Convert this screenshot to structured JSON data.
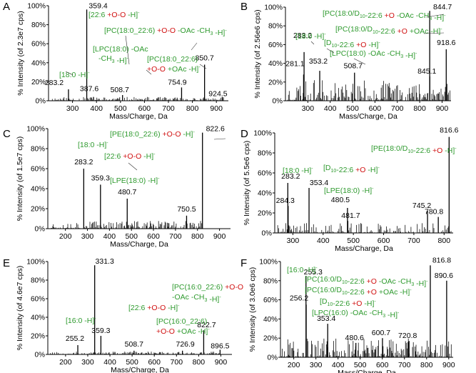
{
  "figure": {
    "title": "Mass spectra panels A-F"
  },
  "colors": {
    "green": "#2e9a2e",
    "red": "#d01010",
    "black": "#000000",
    "axis": "#000000"
  },
  "chart_data": [
    {
      "panel": "A",
      "type": "bar",
      "title": "",
      "xlabel": "Mass/Charge, Da",
      "ylabel": "% Intensity (of 2.3e7 cps)",
      "xlim": [
        200,
        950
      ],
      "ylim": [
        0,
        100
      ],
      "xticks": [
        300,
        400,
        500,
        600,
        700,
        800,
        900
      ],
      "yticks": [
        0,
        20,
        40,
        60,
        80,
        100
      ],
      "ytick_suffix": "%",
      "peaks": [
        {
          "x": 283.2,
          "y": 12,
          "label": "283.2"
        },
        {
          "x": 359.4,
          "y": 96,
          "label": "359.4"
        },
        {
          "x": 387.6,
          "y": 4,
          "label": "387.6"
        },
        {
          "x": 508.7,
          "y": 6,
          "label": "508.7"
        },
        {
          "x": 754.9,
          "y": 14,
          "label": "754.9"
        },
        {
          "x": 850.7,
          "y": 38,
          "label": "850.7"
        },
        {
          "x": 924.5,
          "y": 4,
          "label": "924.5"
        }
      ],
      "noise_seed": 11,
      "noise_range": [
        210,
        930
      ],
      "noise_max": 4,
      "annotations": [
        {
          "id": "a1",
          "segments": [
            [
              "[18:0 -H]",
              "green"
            ],
            [
              "-",
              "green",
              "sup"
            ]
          ]
        },
        {
          "id": "a2",
          "segments": [
            [
              "[22:6 ",
              "green"
            ],
            [
              "+O-O",
              "red"
            ],
            [
              " -H]",
              "green"
            ],
            [
              "-",
              "green",
              "sup"
            ]
          ]
        },
        {
          "id": "a3",
          "segments": [
            [
              "[PC(18:0_22:6) ",
              "green"
            ],
            [
              "+O-O",
              "red"
            ],
            [
              " -OAc -CH",
              "green"
            ],
            [
              "3",
              "green",
              "sub"
            ],
            [
              " -H]",
              "green"
            ],
            [
              "-",
              "green",
              "sup"
            ]
          ]
        },
        {
          "id": "a4",
          "segments": [
            [
              "[LPC(18:0) -OAc",
              "green"
            ]
          ]
        },
        {
          "id": "a5",
          "segments": [
            [
              "-CH",
              "green"
            ],
            [
              "3",
              "green",
              "sub"
            ],
            [
              " -H]",
              "green"
            ],
            [
              "-",
              "green",
              "sup"
            ]
          ]
        },
        {
          "id": "a6",
          "segments": [
            [
              "[PC(18:0_22:6)",
              "green"
            ]
          ]
        },
        {
          "id": "a7",
          "segments": [
            [
              "+O-O",
              "red"
            ],
            [
              " +OAc -H]",
              "green"
            ],
            [
              "-",
              "green",
              "sup"
            ]
          ]
        }
      ]
    },
    {
      "panel": "B",
      "type": "bar",
      "title": "",
      "xlabel": "Mass/Charge, Da",
      "ylabel": "% Intensity (of 2.56e6 cps)",
      "xlim": [
        200,
        940
      ],
      "ylim": [
        0,
        100
      ],
      "xticks": [
        300,
        400,
        500,
        600,
        700,
        800,
        900
      ],
      "yticks": [
        0,
        20,
        40,
        60,
        80,
        100
      ],
      "ytick_suffix": "%",
      "peaks": [
        {
          "x": 281.1,
          "y": 28,
          "label": "281.1"
        },
        {
          "x": 283.2,
          "y": 52,
          "label": "283.2"
        },
        {
          "x": 353.2,
          "y": 32,
          "label": "353.2"
        },
        {
          "x": 508.7,
          "y": 30,
          "label": "508.7"
        },
        {
          "x": 844.7,
          "y": 96,
          "label": "844.7"
        },
        {
          "x": 845.1,
          "y": 26,
          "label": "845.1"
        },
        {
          "x": 918.6,
          "y": 55,
          "label": "918.6"
        }
      ],
      "noise_seed": 23,
      "noise_range": [
        210,
        935
      ],
      "noise_max": 22,
      "annotations": [
        {
          "id": "b1",
          "segments": [
            [
              "[PC(18:0/D",
              "green"
            ],
            [
              "10",
              "green",
              "sub"
            ],
            [
              "-22:6 ",
              "green"
            ],
            [
              "+O",
              "red"
            ],
            [
              " -OAc -CH",
              "green"
            ],
            [
              "3",
              "green",
              "sub"
            ],
            [
              " -H]",
              "green"
            ],
            [
              "-",
              "green",
              "sup"
            ]
          ]
        },
        {
          "id": "b2",
          "segments": [
            [
              "[PC(18:0/D",
              "green"
            ],
            [
              "10",
              "green",
              "sub"
            ],
            [
              "-22:6 ",
              "green"
            ],
            [
              "+O",
              "red"
            ],
            [
              " +OAc -H]",
              "green"
            ],
            [
              "-",
              "green",
              "sup"
            ]
          ]
        },
        {
          "id": "b3",
          "segments": [
            [
              "[18:0 -H]",
              "green"
            ],
            [
              "-",
              "green",
              "sup"
            ]
          ]
        },
        {
          "id": "b4",
          "segments": [
            [
              "[D",
              "green"
            ],
            [
              "10",
              "green",
              "sub"
            ],
            [
              "-22:6 ",
              "green"
            ],
            [
              "+O",
              "red"
            ],
            [
              " -H]",
              "green"
            ],
            [
              "-",
              "green",
              "sup"
            ]
          ]
        },
        {
          "id": "b5",
          "segments": [
            [
              "[LPC(18:0) -OAc -CH",
              "green"
            ],
            [
              "3",
              "green",
              "sub"
            ],
            [
              " -H]",
              "green"
            ],
            [
              "-",
              "green",
              "sup"
            ]
          ]
        }
      ]
    },
    {
      "panel": "C",
      "type": "bar",
      "title": "",
      "xlabel": "Mass/Charge, Da",
      "ylabel": "% Intensity (of 1.5e7 cps)",
      "xlim": [
        120,
        950
      ],
      "ylim": [
        0,
        100
      ],
      "xticks": [
        200,
        300,
        400,
        500,
        600,
        700,
        800,
        900
      ],
      "yticks": [
        0,
        20,
        40,
        60,
        80,
        100
      ],
      "ytick_suffix": "%",
      "peaks": [
        {
          "x": 283.2,
          "y": 60,
          "label": "283.2"
        },
        {
          "x": 359.3,
          "y": 44,
          "label": "359.3"
        },
        {
          "x": 480.7,
          "y": 30,
          "label": "480.7"
        },
        {
          "x": 750.5,
          "y": 13,
          "label": "750.5"
        },
        {
          "x": 822.6,
          "y": 96,
          "label": "822.6"
        }
      ],
      "noise_seed": 37,
      "noise_range": [
        125,
        830
      ],
      "noise_max": 8,
      "annotations": [
        {
          "id": "c1",
          "segments": [
            [
              "[PE(18:0_22:6) ",
              "green"
            ],
            [
              "+O-O",
              "red"
            ],
            [
              " -H]",
              "green"
            ],
            [
              "-",
              "green",
              "sup"
            ]
          ]
        },
        {
          "id": "c2",
          "segments": [
            [
              "[18:0 -H]",
              "green"
            ],
            [
              "-",
              "green",
              "sup"
            ]
          ]
        },
        {
          "id": "c3",
          "segments": [
            [
              "[22:6 ",
              "green"
            ],
            [
              "+O-O",
              "red"
            ],
            [
              " -H]",
              "green"
            ],
            [
              "-",
              "green",
              "sup"
            ]
          ]
        },
        {
          "id": "c4",
          "segments": [
            [
              "[LPE(18:0) -H]",
              "green"
            ],
            [
              "-",
              "green",
              "sup"
            ]
          ]
        }
      ]
    },
    {
      "panel": "D",
      "type": "bar",
      "title": "",
      "xlabel": "Mass/Charge, Da",
      "ylabel": "% Intensity (of 5.5e6 cps)",
      "xlim": [
        240,
        830
      ],
      "ylim": [
        0,
        100
      ],
      "xticks": [
        300,
        400,
        500,
        600,
        700,
        800
      ],
      "yticks": [
        0,
        20,
        40,
        60,
        80,
        100
      ],
      "ytick_suffix": "%",
      "peaks": [
        {
          "x": 283.2,
          "y": 50,
          "label": "283.2"
        },
        {
          "x": 284.3,
          "y": 27,
          "label": "284.3"
        },
        {
          "x": 353.4,
          "y": 45,
          "label": "353.4"
        },
        {
          "x": 480.5,
          "y": 25,
          "label": "480.5"
        },
        {
          "x": 481.7,
          "y": 12,
          "label": "481.7"
        },
        {
          "x": 745.2,
          "y": 22,
          "label": "745.2"
        },
        {
          "x": 780.8,
          "y": 16,
          "label": "780.8"
        },
        {
          "x": 816.6,
          "y": 96,
          "label": "816.6"
        }
      ],
      "noise_seed": 41,
      "noise_range": [
        245,
        825
      ],
      "noise_max": 10,
      "annotations": [
        {
          "id": "d1",
          "segments": [
            [
              "[PE(18:0/D",
              "green"
            ],
            [
              "10",
              "green",
              "sub"
            ],
            [
              "-22:6 ",
              "green"
            ],
            [
              "+O",
              "red"
            ],
            [
              " -H]",
              "green"
            ],
            [
              "-",
              "green",
              "sup"
            ]
          ]
        },
        {
          "id": "d2",
          "segments": [
            [
              "[18:0 -H]",
              "green"
            ],
            [
              "-",
              "green",
              "sup"
            ]
          ]
        },
        {
          "id": "d3",
          "segments": [
            [
              "[D",
              "green"
            ],
            [
              "10",
              "green",
              "sub"
            ],
            [
              "-22:6 ",
              "green"
            ],
            [
              "+O",
              "red"
            ],
            [
              " -H]",
              "green"
            ],
            [
              "-",
              "green",
              "sup"
            ]
          ]
        },
        {
          "id": "d4",
          "segments": [
            [
              "[LPE(18:0) -H]",
              "green"
            ],
            [
              "-",
              "green",
              "sup"
            ]
          ]
        }
      ]
    },
    {
      "panel": "E",
      "type": "bar",
      "title": "",
      "xlabel": "Mass/Charge, Da",
      "ylabel": "% Intensity (of 4.6e7 cps)",
      "xlim": [
        120,
        950
      ],
      "ylim": [
        0,
        100
      ],
      "xticks": [
        200,
        300,
        400,
        500,
        600,
        700,
        800,
        900
      ],
      "yticks": [
        0,
        20,
        40,
        60,
        80,
        100
      ],
      "ytick_suffix": "%",
      "peaks": [
        {
          "x": 255.2,
          "y": 10,
          "label": "255.2"
        },
        {
          "x": 331.3,
          "y": 96,
          "label": "331.3"
        },
        {
          "x": 359.3,
          "y": 20,
          "label": "359.3"
        },
        {
          "x": 508.7,
          "y": 4,
          "label": "508.7"
        },
        {
          "x": 726.9,
          "y": 4,
          "label": "726.9"
        },
        {
          "x": 822.7,
          "y": 26,
          "label": "822.7"
        },
        {
          "x": 896.5,
          "y": 5,
          "label": "896.5"
        }
      ],
      "noise_seed": 53,
      "noise_range": [
        125,
        900
      ],
      "noise_max": 3,
      "annotations": [
        {
          "id": "e1",
          "segments": [
            [
              "[PC(16:0_22:6) ",
              "green"
            ],
            [
              "+O-O",
              "red"
            ]
          ]
        },
        {
          "id": "e2",
          "segments": [
            [
              "-OAc -CH",
              "green"
            ],
            [
              "3",
              "green",
              "sub"
            ],
            [
              " -H]",
              "green"
            ],
            [
              "-",
              "green",
              "sup"
            ]
          ]
        },
        {
          "id": "e3",
          "segments": [
            [
              "[22:6 ",
              "green"
            ],
            [
              "+O-O",
              "red"
            ],
            [
              " -H]",
              "green"
            ],
            [
              "-",
              "green",
              "sup"
            ]
          ]
        },
        {
          "id": "e4",
          "segments": [
            [
              "[16:0 -H]",
              "green"
            ],
            [
              "-",
              "green",
              "sup"
            ]
          ]
        },
        {
          "id": "e5",
          "segments": [
            [
              "[PC(16:0_22:6)",
              "green"
            ]
          ]
        },
        {
          "id": "e6",
          "segments": [
            [
              "+O-O",
              "red"
            ],
            [
              " +OAc -H]",
              "green"
            ],
            [
              "-",
              "green",
              "sup"
            ]
          ]
        }
      ]
    },
    {
      "panel": "F",
      "type": "bar",
      "title": "",
      "xlabel": "Mass/Charge, Da",
      "ylabel": "% Intensity (of 3.0e6 cps)",
      "xlim": [
        140,
        920
      ],
      "ylim": [
        0,
        100
      ],
      "xticks": [
        200,
        300,
        400,
        500,
        600,
        700,
        800,
        900
      ],
      "yticks": [
        0,
        20,
        40,
        60,
        80,
        100
      ],
      "ytick_suffix": "%",
      "peaks": [
        {
          "x": 255.3,
          "y": 85,
          "label": "255.3"
        },
        {
          "x": 256.2,
          "y": 55,
          "label": "256.2"
        },
        {
          "x": 353.4,
          "y": 35,
          "label": "353.4"
        },
        {
          "x": 480.6,
          "y": 15,
          "label": "480.6"
        },
        {
          "x": 600.7,
          "y": 20,
          "label": "600.7"
        },
        {
          "x": 720.8,
          "y": 17,
          "label": "720.8"
        },
        {
          "x": 816.8,
          "y": 96,
          "label": "816.8"
        },
        {
          "x": 890.6,
          "y": 80,
          "label": "890.6"
        }
      ],
      "noise_seed": 67,
      "noise_range": [
        145,
        915
      ],
      "noise_max": 20,
      "annotations": [
        {
          "id": "f1",
          "segments": [
            [
              "[16:0 -H]",
              "green"
            ],
            [
              "-",
              "green",
              "sup"
            ]
          ]
        },
        {
          "id": "f2",
          "segments": [
            [
              "[PC(16:0/D",
              "green"
            ],
            [
              "10",
              "green",
              "sub"
            ],
            [
              "-22:6 ",
              "green"
            ],
            [
              "+O",
              "red"
            ],
            [
              " -OAc -CH",
              "green"
            ],
            [
              "3",
              "green",
              "sub"
            ],
            [
              " -H]",
              "green"
            ],
            [
              "-",
              "green",
              "sup"
            ]
          ]
        },
        {
          "id": "f3",
          "segments": [
            [
              "[PC(16:0/D",
              "green"
            ],
            [
              "10",
              "green",
              "sub"
            ],
            [
              "-22:6 ",
              "green"
            ],
            [
              "+O",
              "red"
            ],
            [
              " +OAc -H]",
              "green"
            ],
            [
              "-",
              "green",
              "sup"
            ]
          ]
        },
        {
          "id": "f4",
          "segments": [
            [
              "[D",
              "green"
            ],
            [
              "10",
              "green",
              "sub"
            ],
            [
              "-22:6 ",
              "green"
            ],
            [
              "+O",
              "red"
            ],
            [
              " -H]",
              "green"
            ],
            [
              "-",
              "green",
              "sup"
            ]
          ]
        },
        {
          "id": "f5",
          "segments": [
            [
              "[LPC(16:0) -OAc -CH",
              "green"
            ],
            [
              "3",
              "green",
              "sub"
            ],
            [
              " -H]",
              "green"
            ],
            [
              "-",
              "green",
              "sup"
            ]
          ]
        }
      ]
    }
  ]
}
